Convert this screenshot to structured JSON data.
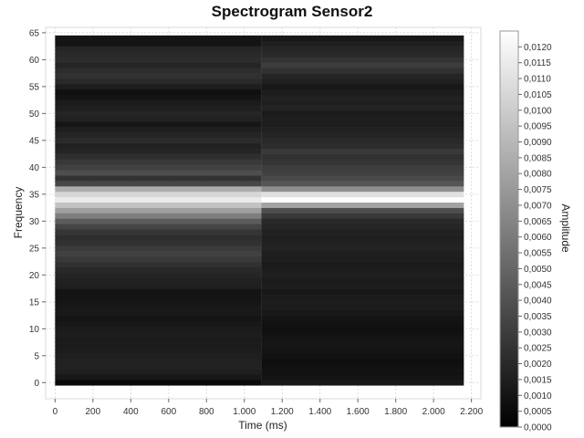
{
  "chart_data": {
    "type": "heatmap",
    "title": "Spectrogram Sensor2",
    "xlabel": "Time (ms)",
    "ylabel": "Frequency",
    "colorbar_label": "Amplitude",
    "xlim": [
      -50,
      2250
    ],
    "ylim": [
      -3,
      66
    ],
    "x_ticks": [
      "0",
      "200",
      "400",
      "600",
      "800",
      "1.000",
      "1.200",
      "1.400",
      "1.600",
      "1.800",
      "2.000",
      "2.200"
    ],
    "y_ticks": [
      "0",
      "5",
      "10",
      "15",
      "20",
      "25",
      "30",
      "35",
      "40",
      "45",
      "50",
      "55",
      "60",
      "65"
    ],
    "colorbar_range": [
      0,
      0.0125
    ],
    "colorbar_ticks": [
      "0,0000",
      "0,0005",
      "0,0010",
      "0,0015",
      "0,0020",
      "0,0025",
      "0,0030",
      "0,0035",
      "0,0040",
      "0,0045",
      "0,0050",
      "0,0055",
      "0,0060",
      "0,0065",
      "0,0070",
      "0,0075",
      "0,0080",
      "0,0085",
      "0,0090",
      "0,0095",
      "0,0100",
      "0,0105",
      "0,0110",
      "0,0115",
      "0,0120"
    ],
    "colormap": [
      "#000000",
      "#ffffff"
    ],
    "grid": true,
    "time_segments": [
      {
        "start": 0,
        "end": 1090
      },
      {
        "start": 1090,
        "end": 2160
      }
    ],
    "freq_bin_height": 1,
    "segment_amplitudes": [
      [
        0.0005,
        0.0012,
        0.0015,
        0.0016,
        0.0016,
        0.0015,
        0.0014,
        0.0013,
        0.0013,
        0.0014,
        0.0013,
        0.0012,
        0.001,
        0.0012,
        0.0012,
        0.0011,
        0.001,
        0.001,
        0.0015,
        0.0016,
        0.0018,
        0.002,
        0.0024,
        0.0028,
        0.0032,
        0.0029,
        0.0024,
        0.0022,
        0.0026,
        0.0034,
        0.0045,
        0.0062,
        0.0078,
        0.0095,
        0.0115,
        0.0105,
        0.0085,
        0.0035,
        0.0025,
        0.0038,
        0.0032,
        0.0028,
        0.0023,
        0.0018,
        0.0016,
        0.0021,
        0.0018,
        0.0015,
        0.0011,
        0.0016,
        0.0018,
        0.0015,
        0.0013,
        0.001,
        0.0008,
        0.0014,
        0.002,
        0.0024,
        0.0022,
        0.0018,
        0.0022,
        0.002,
        0.0018,
        0.001,
        0.001
      ],
      [
        0.0012,
        0.001,
        0.0009,
        0.0008,
        0.0007,
        0.0009,
        0.001,
        0.0011,
        0.001,
        0.0009,
        0.0008,
        0.0009,
        0.001,
        0.0012,
        0.0013,
        0.0014,
        0.0013,
        0.0012,
        0.0014,
        0.0013,
        0.0015,
        0.0014,
        0.0013,
        0.0014,
        0.0015,
        0.0017,
        0.0016,
        0.0015,
        0.0016,
        0.0018,
        0.002,
        0.0028,
        0.0038,
        0.008,
        0.0124,
        0.011,
        0.007,
        0.0042,
        0.0036,
        0.0032,
        0.003,
        0.0026,
        0.0024,
        0.0028,
        0.0022,
        0.002,
        0.0018,
        0.0016,
        0.0014,
        0.0015,
        0.0013,
        0.0017,
        0.0015,
        0.0016,
        0.0014,
        0.0012,
        0.0015,
        0.0018,
        0.0024,
        0.003,
        0.0025,
        0.002,
        0.0018,
        0.0015,
        0.0012
      ]
    ]
  }
}
